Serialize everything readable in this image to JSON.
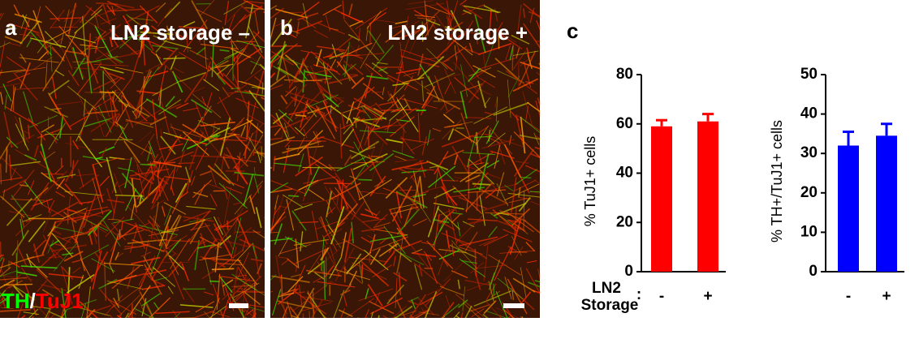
{
  "panels": {
    "a": {
      "label": "a",
      "title": "LN2 storage –",
      "stain_1": "TH",
      "slash": "/",
      "stain_2": "TuJ1"
    },
    "b": {
      "label": "b",
      "title": "LN2 storage +"
    },
    "c": {
      "label": "c",
      "row_label_1": "LN2",
      "row_label_2": "Storage",
      "colon": ":"
    }
  },
  "chart_data": [
    {
      "type": "bar",
      "y_label": "% TuJ1+ cells",
      "categories": [
        "-",
        "+"
      ],
      "values": [
        59,
        61
      ],
      "errors": [
        2.5,
        3
      ],
      "color": "#ff0000",
      "ylim": [
        0,
        80
      ],
      "yticks": [
        0,
        20,
        40,
        60,
        80
      ]
    },
    {
      "type": "bar",
      "y_label": "% TH+/TuJ1+ cells",
      "categories": [
        "-",
        "+"
      ],
      "values": [
        32,
        34.5
      ],
      "errors": [
        3.5,
        3
      ],
      "color": "#0000ff",
      "ylim": [
        0,
        50
      ],
      "yticks": [
        0,
        10,
        20,
        30,
        40,
        50
      ]
    }
  ]
}
